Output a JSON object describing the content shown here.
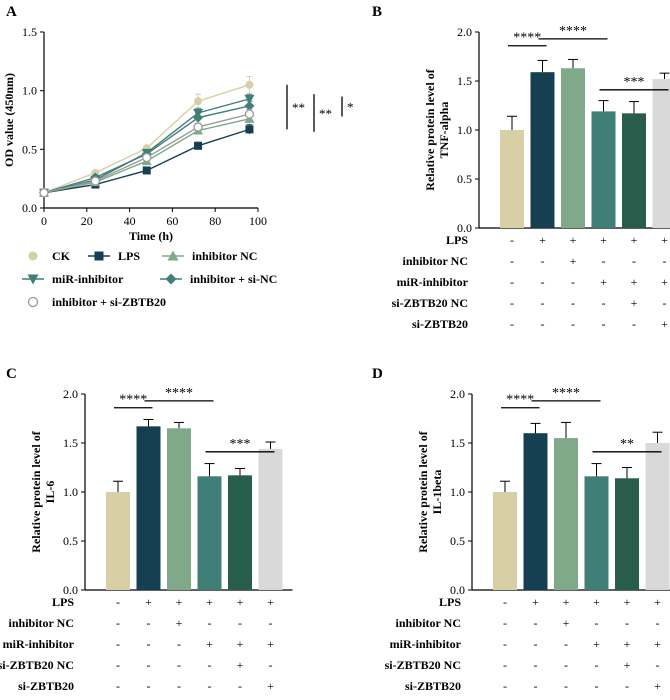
{
  "colors": {
    "CK": "#d8cfa6",
    "LPS": "#173f52",
    "inhibitor NC": "#7fa989",
    "miR-inhibitor": "#3f7f78",
    "inhibitor + si-NC": "#285c4b",
    "inhibitor + si-ZBTB20": "#d9d9d9"
  },
  "chart_data": [
    {
      "panel": "A",
      "type": "line",
      "xlabel": "Time (h)",
      "ylabel": "OD value (450nm)",
      "xlim": [
        0,
        100
      ],
      "ylim": [
        0.0,
        1.5
      ],
      "xticks": [
        "0",
        "20",
        "40",
        "60",
        "80",
        "100"
      ],
      "yticks": [
        "0.0",
        "0.5",
        "1.0",
        "1.5"
      ],
      "x": [
        0,
        24,
        48,
        72,
        96
      ],
      "series": [
        {
          "name": "CK",
          "values": [
            0.13,
            0.3,
            0.51,
            0.91,
            1.05
          ],
          "err": [
            0.01,
            0.02,
            0.02,
            0.06,
            0.07
          ],
          "marker": "circle",
          "color": "#d8cfa6"
        },
        {
          "name": "LPS",
          "values": [
            0.13,
            0.2,
            0.32,
            0.53,
            0.67
          ],
          "err": [
            0.01,
            0.02,
            0.02,
            0.03,
            0.04
          ],
          "marker": "square",
          "color": "#173f52"
        },
        {
          "name": "inhibitor NC",
          "values": [
            0.13,
            0.22,
            0.4,
            0.66,
            0.76
          ],
          "err": [
            0.01,
            0.02,
            0.02,
            0.03,
            0.04
          ],
          "marker": "triangle-up",
          "color": "#7fa989"
        },
        {
          "name": "miR-inhibitor",
          "values": [
            0.13,
            0.24,
            0.47,
            0.81,
            0.93
          ],
          "err": [
            0.01,
            0.02,
            0.02,
            0.04,
            0.04
          ],
          "marker": "triangle-down",
          "color": "#3f7f78"
        },
        {
          "name": "inhibitor + si-NC",
          "values": [
            0.13,
            0.26,
            0.46,
            0.77,
            0.87
          ],
          "err": [
            0.01,
            0.02,
            0.02,
            0.04,
            0.04
          ],
          "marker": "diamond",
          "color": "#3f7f78"
        },
        {
          "name": "inhibitor + si-ZBTB20",
          "values": [
            0.13,
            0.23,
            0.43,
            0.69,
            0.8
          ],
          "err": [
            0.01,
            0.02,
            0.02,
            0.03,
            0.04
          ],
          "marker": "open-circle",
          "color": "#9a9a9a"
        }
      ],
      "significance": [
        "**",
        "**",
        "*"
      ],
      "legend": [
        "CK",
        "LPS",
        "inhibitor NC",
        "miR-inhibitor",
        "inhibitor + si-NC",
        "inhibitor + si-ZBTB20"
      ]
    },
    {
      "panel": "B",
      "type": "bar",
      "ylabel": "Relative protein level of TNF-alpha",
      "ylabel_lines": [
        "Relative protein level of",
        "TNF-alpha"
      ],
      "ylim": [
        0.0,
        2.0
      ],
      "yticks": [
        "0.0",
        "0.5",
        "1.0",
        "1.5",
        "2.0"
      ],
      "values": [
        1.0,
        1.59,
        1.63,
        1.19,
        1.17,
        1.52
      ],
      "errors": [
        0.14,
        0.12,
        0.09,
        0.11,
        0.12,
        0.06
      ],
      "significance": [
        {
          "from": 0,
          "to": 1,
          "label": "****"
        },
        {
          "from": 1,
          "to": 3,
          "label": "****"
        },
        {
          "from": 3,
          "to": 5,
          "label": "***"
        }
      ]
    },
    {
      "panel": "C",
      "type": "bar",
      "ylabel": "Relative protein level of IL-6",
      "ylabel_lines": [
        "Relative protein level of",
        "IL-6"
      ],
      "ylim": [
        0.0,
        2.0
      ],
      "yticks": [
        "0.0",
        "0.5",
        "1.0",
        "1.5",
        "2.0"
      ],
      "values": [
        1.0,
        1.67,
        1.65,
        1.16,
        1.17,
        1.44
      ],
      "errors": [
        0.11,
        0.07,
        0.06,
        0.13,
        0.07,
        0.07
      ],
      "significance": [
        {
          "from": 0,
          "to": 1,
          "label": "****"
        },
        {
          "from": 1,
          "to": 3,
          "label": "****"
        },
        {
          "from": 3,
          "to": 5,
          "label": "***"
        }
      ]
    },
    {
      "panel": "D",
      "type": "bar",
      "ylabel": "Relative protein level of IL-1beta",
      "ylabel_lines": [
        "Relative protein level of",
        "IL-1beta"
      ],
      "ylim": [
        0.0,
        2.0
      ],
      "yticks": [
        "0.0",
        "0.5",
        "1.0",
        "1.5",
        "2.0"
      ],
      "values": [
        1.0,
        1.6,
        1.55,
        1.16,
        1.14,
        1.5
      ],
      "errors": [
        0.11,
        0.1,
        0.16,
        0.13,
        0.11,
        0.11
      ],
      "significance": [
        {
          "from": 0,
          "to": 1,
          "label": "****"
        },
        {
          "from": 1,
          "to": 3,
          "label": "****"
        },
        {
          "from": 3,
          "to": 5,
          "label": "**"
        }
      ]
    }
  ],
  "treatment_table": {
    "rows": [
      {
        "label": "LPS",
        "signs": [
          "-",
          "+",
          "+",
          "+",
          "+",
          "+"
        ]
      },
      {
        "label": "inhibitor NC",
        "signs": [
          "-",
          "-",
          "+",
          "-",
          "-",
          "-"
        ]
      },
      {
        "label": "miR-inhibitor",
        "signs": [
          "-",
          "-",
          "-",
          "+",
          "+",
          "+"
        ]
      },
      {
        "label": "si-ZBTB20 NC",
        "signs": [
          "-",
          "-",
          "-",
          "-",
          "+",
          "-"
        ]
      },
      {
        "label": "si-ZBTB20",
        "signs": [
          "-",
          "-",
          "-",
          "-",
          "-",
          "+"
        ]
      }
    ]
  }
}
